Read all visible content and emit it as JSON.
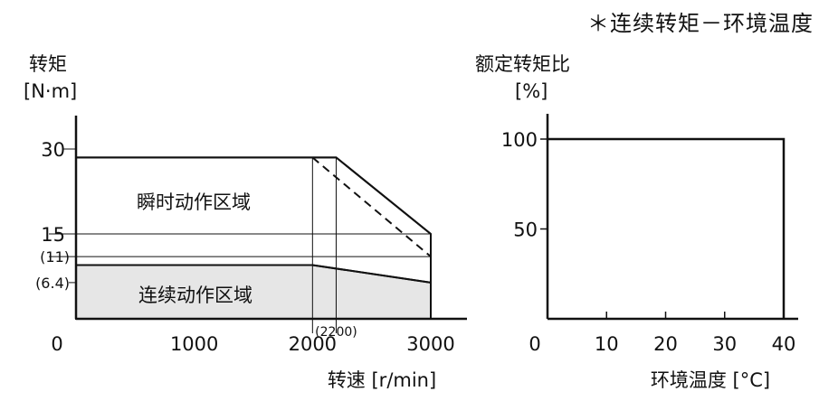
{
  "note": "＊连续转矩－环境温度",
  "chart_data": [
    {
      "type": "area",
      "ylabel_line1": "转矩",
      "ylabel_line2": "[N·m]",
      "xlabel": "转速 [r/min]",
      "xlim": [
        0,
        3000
      ],
      "ylim": [
        0,
        30
      ],
      "x_ticks": [
        {
          "value": 0,
          "label": "0"
        },
        {
          "value": 1000,
          "label": "1000"
        },
        {
          "value": 2000,
          "label": "2000"
        },
        {
          "value": 3000,
          "label": "3000"
        }
      ],
      "x_annotation": {
        "value": 2200,
        "label": "(2200)"
      },
      "y_ticks": [
        {
          "value": 30,
          "label": "30"
        },
        {
          "value": 15,
          "label": "15"
        },
        {
          "value": 11,
          "label": "(11)"
        },
        {
          "value": 6.4,
          "label": "(6.4)"
        }
      ],
      "regions": [
        {
          "name": "瞬时动作区域",
          "points": [
            [
              0,
              28.5
            ],
            [
              2000,
              28.5
            ],
            [
              2200,
              28.5
            ],
            [
              3000,
              15
            ],
            [
              3000,
              0
            ],
            [
              0,
              0
            ]
          ],
          "fill": "#ffffff"
        },
        {
          "name": "连续动作区域",
          "points": [
            [
              0,
              9.5
            ],
            [
              2000,
              9.5
            ],
            [
              3000,
              6.4
            ],
            [
              3000,
              0
            ],
            [
              0,
              0
            ]
          ],
          "fill": "#e6e6e6"
        }
      ],
      "dashed_line": [
        [
          2000,
          28.5
        ],
        [
          3000,
          11
        ]
      ],
      "guide_lines": {
        "horizontal": [
          15,
          11
        ],
        "vertical": [
          2000,
          2200
        ]
      }
    },
    {
      "type": "line",
      "ylabel_line1": "额定转矩比",
      "ylabel_line2": "[%]",
      "xlabel": "环境温度 [°C]",
      "xlim": [
        0,
        40
      ],
      "ylim": [
        0,
        100
      ],
      "x_ticks": [
        {
          "value": 0,
          "label": "0"
        },
        {
          "value": 10,
          "label": "10"
        },
        {
          "value": 20,
          "label": "20"
        },
        {
          "value": 30,
          "label": "30"
        },
        {
          "value": 40,
          "label": "40"
        }
      ],
      "y_ticks": [
        {
          "value": 100,
          "label": "100"
        },
        {
          "value": 50,
          "label": "50"
        }
      ],
      "series": [
        {
          "points": [
            [
              0,
              100
            ],
            [
              40,
              100
            ],
            [
              40,
              0
            ]
          ]
        }
      ]
    }
  ]
}
